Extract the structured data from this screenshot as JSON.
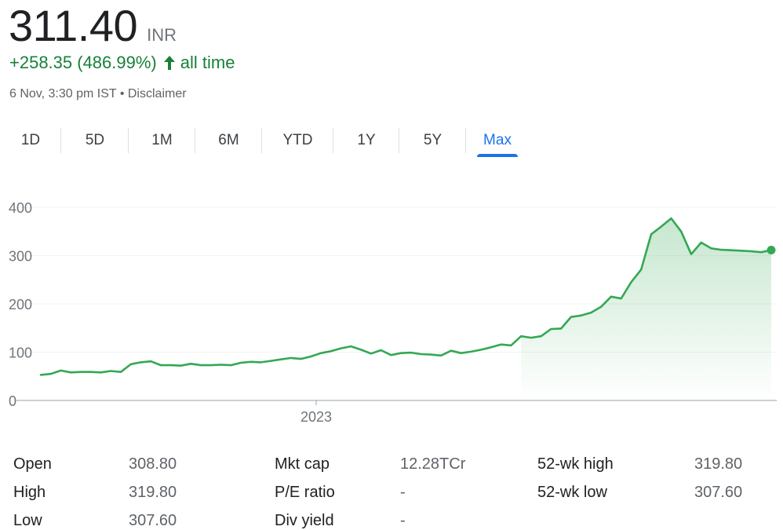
{
  "header": {
    "price": "311.40",
    "currency": "INR",
    "change": "+258.35 (486.99%)",
    "change_period": "all time",
    "timestamp": "6 Nov, 3:30 pm IST",
    "separator": "•",
    "disclaimer": "Disclaimer",
    "change_color": "#188038"
  },
  "tabs": [
    {
      "label": "1D",
      "active": false
    },
    {
      "label": "5D",
      "active": false
    },
    {
      "label": "1M",
      "active": false
    },
    {
      "label": "6M",
      "active": false
    },
    {
      "label": "YTD",
      "active": false
    },
    {
      "label": "1Y",
      "active": false
    },
    {
      "label": "5Y",
      "active": false
    },
    {
      "label": "Max",
      "active": true
    }
  ],
  "chart_data": {
    "type": "area",
    "title": "",
    "xlabel": "",
    "ylabel": "",
    "ylim": [
      0,
      400
    ],
    "yticks": [
      0,
      100,
      200,
      300,
      400
    ],
    "ytick_labels": [
      "0",
      "100",
      "200",
      "300",
      "400"
    ],
    "xtick_labels": [
      "2023"
    ],
    "grid": true,
    "line_color": "#34a853",
    "series": [
      {
        "values": [
          53,
          55,
          62,
          58,
          59,
          59,
          58,
          61,
          59,
          75,
          79,
          81,
          73,
          73,
          72,
          76,
          73,
          73,
          74,
          73,
          78,
          80,
          79,
          82,
          85,
          88,
          86,
          91,
          98,
          102,
          108,
          112,
          105,
          97,
          104,
          94,
          98,
          99,
          96,
          95,
          93,
          103,
          98,
          101,
          105,
          110,
          116,
          114,
          133,
          130,
          133,
          148,
          149,
          173,
          176,
          182,
          194,
          215,
          211,
          245,
          271,
          344,
          360,
          377,
          350,
          303,
          327,
          315,
          312,
          311,
          310,
          309,
          307,
          311.4
        ]
      }
    ]
  },
  "stats": {
    "col1": [
      {
        "label": "Open",
        "value": "308.80"
      },
      {
        "label": "High",
        "value": "319.80"
      },
      {
        "label": "Low",
        "value": "307.60"
      }
    ],
    "col2": [
      {
        "label": "Mkt cap",
        "value": "12.28TCr"
      },
      {
        "label": "P/E ratio",
        "value": "-"
      },
      {
        "label": "Div yield",
        "value": "-"
      }
    ],
    "col3": [
      {
        "label": "52-wk high",
        "value": "319.80"
      },
      {
        "label": "52-wk low",
        "value": "307.60"
      }
    ]
  }
}
